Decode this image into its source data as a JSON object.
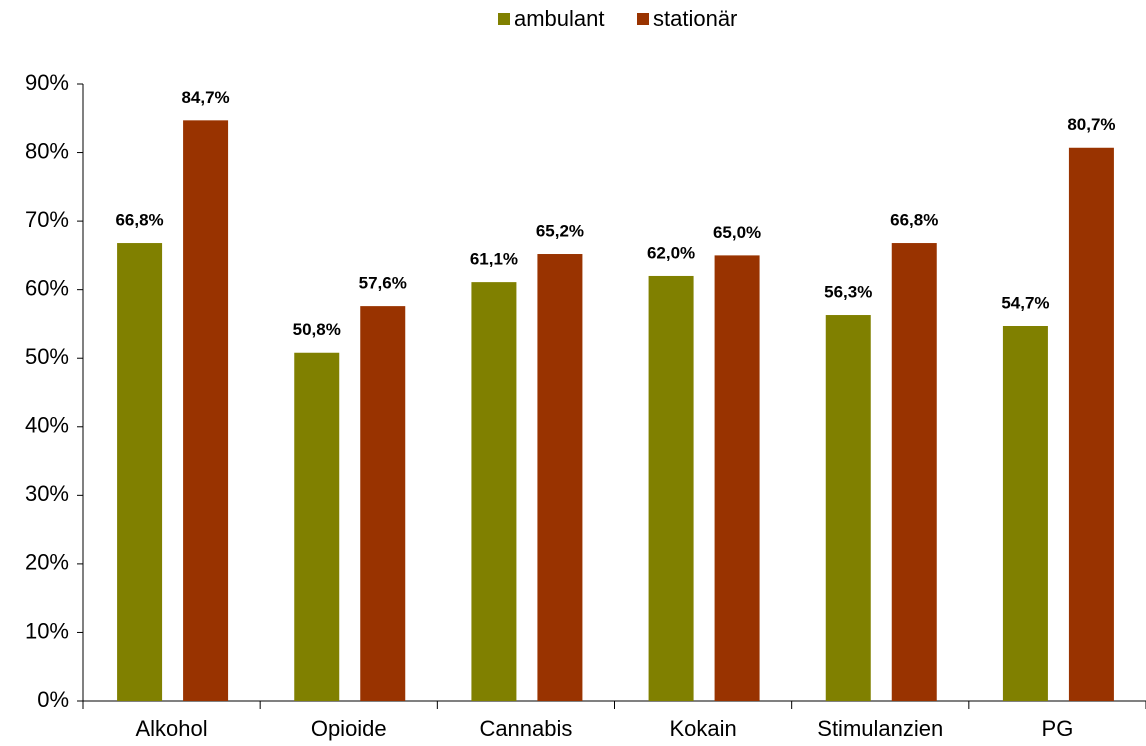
{
  "chart_data": {
    "type": "bar",
    "categories": [
      "Alkohol",
      "Opioide",
      "Cannabis",
      "Kokain",
      "Stimulanzien",
      "PG"
    ],
    "series": [
      {
        "name": "ambulant",
        "color": "#808000",
        "values": [
          66.8,
          50.8,
          61.1,
          62.0,
          56.3,
          54.7
        ],
        "value_labels": [
          "66,8%",
          "50,8%",
          "61,1%",
          "62,0%",
          "56,3%",
          "54,7%"
        ]
      },
      {
        "name": "stationär",
        "color": "#993300",
        "values": [
          84.7,
          57.6,
          65.2,
          65.0,
          66.8,
          80.7
        ],
        "value_labels": [
          "84,7%",
          "57,6%",
          "65,2%",
          "65,0%",
          "66,8%",
          "80,7%"
        ]
      }
    ],
    "ylim": [
      0,
      90
    ],
    "yticks": [
      {
        "value": 0,
        "label": "0%"
      },
      {
        "value": 10,
        "label": "10%"
      },
      {
        "value": 20,
        "label": "20%"
      },
      {
        "value": 30,
        "label": "30%"
      },
      {
        "value": 40,
        "label": "40%"
      },
      {
        "value": 50,
        "label": "50%"
      },
      {
        "value": 60,
        "label": "60%"
      },
      {
        "value": 70,
        "label": "70%"
      },
      {
        "value": 80,
        "label": "80%"
      },
      {
        "value": 90,
        "label": "90%"
      }
    ],
    "legend": "top",
    "grid": false
  }
}
